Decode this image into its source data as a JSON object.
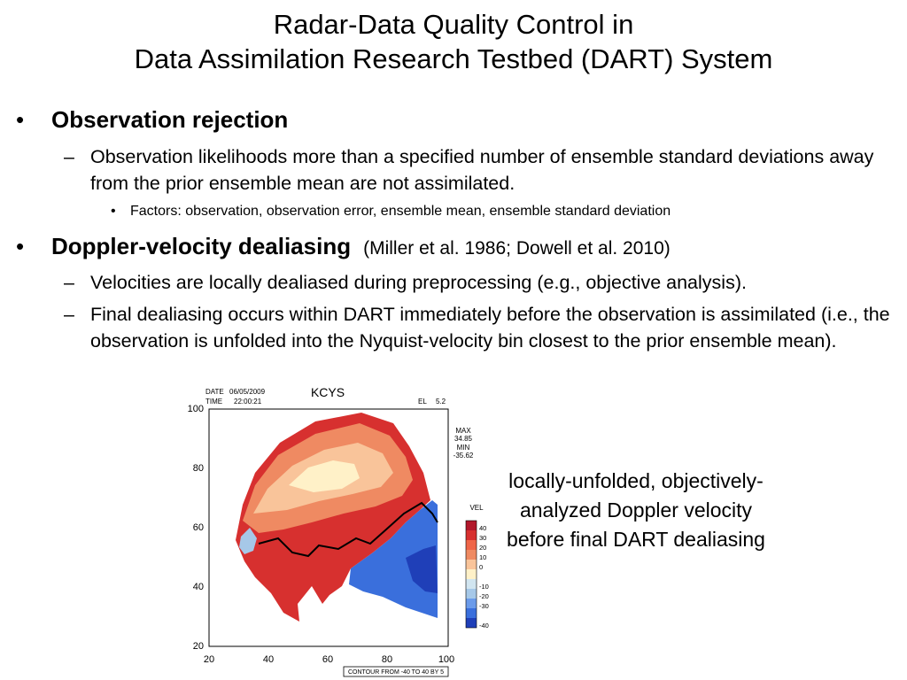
{
  "slide": {
    "title_line1": "Radar-Data Quality Control in",
    "title_line2": "Data Assimilation Research Testbed (DART) System",
    "bullets": {
      "rejection": {
        "heading": "Observation rejection",
        "sub1": "Observation likelihoods more than a specified number of ensemble standard deviations away from the prior ensemble mean are not assimilated.",
        "factors": "Factors:  observation, observation error, ensemble mean, ensemble standard deviation"
      },
      "dealiasing": {
        "heading": "Doppler-velocity dealiasing",
        "reference": "(Miller et al. 1986; Dowell et al. 2010)",
        "sub1": "Velocities are locally dealiased during preprocessing (e.g., objective analysis).",
        "sub2": "Final dealiasing occurs within DART immediately before the observation is assimilated (i.e., the observation is unfolded into the Nyquist-velocity bin closest to the prior ensemble mean)."
      }
    },
    "bullet_glyph": "•",
    "dash_glyph": "–",
    "caption": "locally-unfolded, objectively-analyzed Doppler velocity before final DART dealiasing"
  },
  "plot": {
    "station": "KCYS",
    "date_label": "DATE",
    "date_value": "06/05/2009",
    "time_label": "TIME",
    "time_value": "22:00:21",
    "el_label": "EL",
    "el_value": "5.2",
    "max_label": "MAX",
    "max_value": "34.85",
    "min_label": "MIN",
    "min_value": "-35.62",
    "x_ticks": [
      "20",
      "40",
      "60",
      "80",
      "100"
    ],
    "y_ticks": [
      "100",
      "80",
      "60",
      "40",
      "20"
    ],
    "footer": "CONTOUR FROM -40 TO 40 BY 5",
    "legend_title": "VEL",
    "legend_levels": [
      "40",
      "30",
      "20",
      "10",
      "0",
      "-10",
      "-20",
      "-30",
      "-40"
    ],
    "colors": {
      "dark_red": "#b2182b",
      "red": "#d7302f",
      "orange": "#ef8a62",
      "light_orange": "#f9c49a",
      "cream": "#fff1c8",
      "light_blue": "#a6c8e8",
      "blue": "#3a6fdc",
      "dark_blue": "#1f3fb8"
    }
  }
}
